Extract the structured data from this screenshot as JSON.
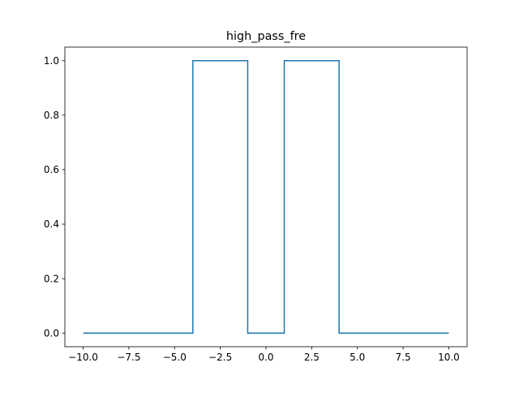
{
  "chart_data": {
    "type": "line",
    "title": "high_pass_fre",
    "xlabel": "",
    "ylabel": "",
    "xlim": [
      -11,
      11
    ],
    "ylim": [
      -0.05,
      1.05
    ],
    "grid": false,
    "legend": "none",
    "x_ticks": [
      -10.0,
      -7.5,
      -5.0,
      -2.5,
      0.0,
      2.5,
      5.0,
      7.5,
      10.0
    ],
    "x_tick_labels": [
      "−10.0",
      "−7.5",
      "−5.0",
      "−2.5",
      "0.0",
      "2.5",
      "5.0",
      "7.5",
      "10.0"
    ],
    "y_ticks": [
      0.0,
      0.2,
      0.4,
      0.6,
      0.8,
      1.0
    ],
    "y_tick_labels": [
      "0.0",
      "0.2",
      "0.4",
      "0.6",
      "0.8",
      "1.0"
    ],
    "series": [
      {
        "color": "#1f77b4",
        "x": [
          -10,
          -4,
          -4,
          -1,
          -1,
          1,
          1,
          4,
          4,
          10
        ],
        "y": [
          0,
          0,
          1,
          1,
          0,
          0,
          1,
          1,
          0,
          0
        ]
      }
    ]
  }
}
